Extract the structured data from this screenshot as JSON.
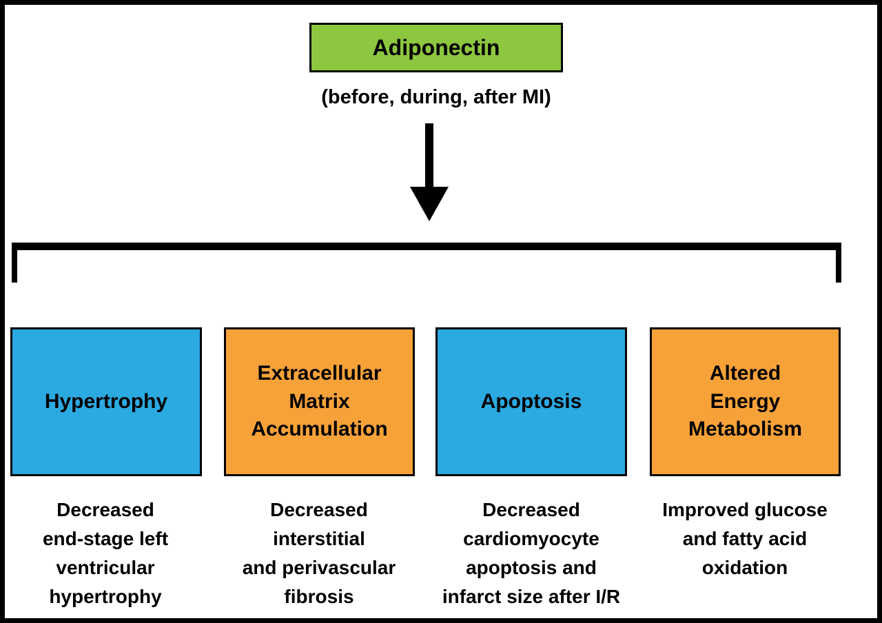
{
  "figure": {
    "title_box": {
      "label": "Adiponectin",
      "bg": "#8DC63F"
    },
    "subtitle": "(before, during, after MI)",
    "colors": {
      "green": "#8DC63F",
      "blue": "#2BA9E1",
      "orange": "#F7A239",
      "line": "#000000"
    },
    "boxes": [
      {
        "label": "Hypertrophy",
        "color_name": "blue",
        "color_hex": "#2BA9E1",
        "caption": "Decreased\nend-stage left\nventricular\nhypertrophy"
      },
      {
        "label": "Extracellular\nMatrix\nAccumulation",
        "color_name": "orange",
        "color_hex": "#F7A239",
        "caption": "Decreased\ninterstitial\nand perivascular\nfibrosis"
      },
      {
        "label": "Apoptosis",
        "color_name": "blue",
        "color_hex": "#2BA9E1",
        "caption": "Decreased\ncardiomyocyte\napoptosis and\ninfarct size after I/R"
      },
      {
        "label": "Altered\nEnergy\nMetabolism",
        "color_name": "orange",
        "color_hex": "#F7A239",
        "caption": "Improved glucose\nand fatty acid\noxidation"
      }
    ]
  }
}
